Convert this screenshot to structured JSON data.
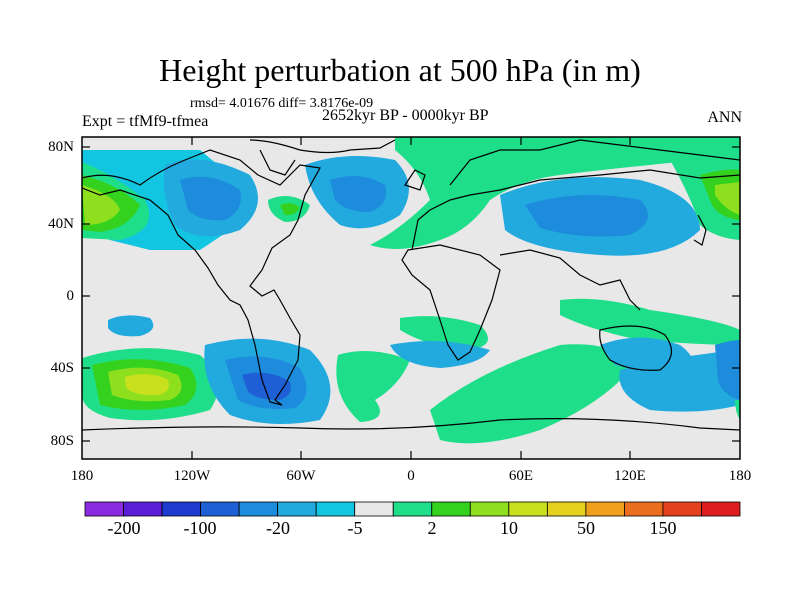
{
  "title": "Height perturbation at 500 hPa (in m)",
  "stats": "rmsd= 4.01676 diff= 3.8176e-09",
  "expt": "Expt = tfMf9-tfmea",
  "period": "2652kyr BP - 0000kyr BP",
  "season": "ANN",
  "lat_labels": [
    "80N",
    "40N",
    "0",
    "40S",
    "80S"
  ],
  "lon_labels": [
    "180",
    "120W",
    "60W",
    "0",
    "60E",
    "120E",
    "180"
  ],
  "colorbar": {
    "colors": [
      "#8a2be2",
      "#5a1ed8",
      "#1e3cd0",
      "#1e5fd6",
      "#1e8cdc",
      "#22aadf",
      "#12c6e2",
      "#e8e8e8",
      "#1fde8a",
      "#34d21e",
      "#8ee01e",
      "#c8e01e",
      "#e6d21e",
      "#f0a01e",
      "#ea6e1e",
      "#e4421e",
      "#de1e1e"
    ],
    "labels": [
      "-200",
      "-100",
      "-20",
      "-5",
      "2",
      "10",
      "50",
      "150"
    ]
  }
}
